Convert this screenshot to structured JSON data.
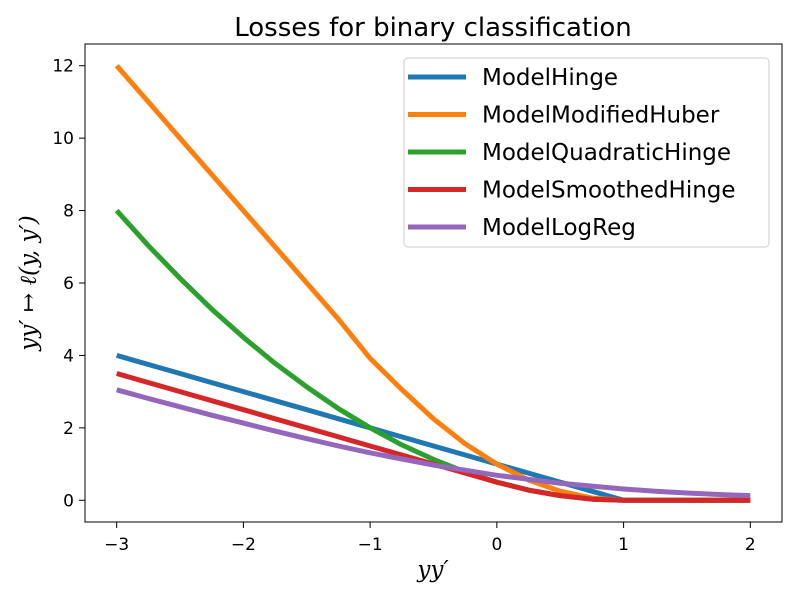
{
  "chart_data": {
    "type": "line",
    "title": "Losses for binary classification",
    "xlabel": "yy′",
    "ylabel": "yy′ ↦ ℓ(y, y′)",
    "xlim": [
      -3.25,
      2.25
    ],
    "ylim": [
      -0.6,
      12.6
    ],
    "xticks": [
      -3,
      -2,
      -1,
      0,
      1,
      2
    ],
    "xtick_labels": [
      "−3",
      "−2",
      "−1",
      "0",
      "1",
      "2"
    ],
    "yticks": [
      0,
      2,
      4,
      6,
      8,
      10,
      12
    ],
    "ytick_labels": [
      "0",
      "2",
      "4",
      "6",
      "8",
      "10",
      "12"
    ],
    "grid": false,
    "legend_position": "top-right",
    "x": [
      -3,
      -2.75,
      -2.5,
      -2.25,
      -2,
      -1.75,
      -1.5,
      -1.25,
      -1,
      -0.75,
      -0.5,
      -0.25,
      0,
      0.25,
      0.5,
      0.75,
      1,
      1.25,
      1.5,
      1.75,
      2
    ],
    "series": [
      {
        "name": "ModelHinge",
        "color": "#1f77b4",
        "values": [
          4,
          3.75,
          3.5,
          3.25,
          3,
          2.75,
          2.5,
          2.25,
          2,
          1.75,
          1.5,
          1.25,
          1,
          0.75,
          0.5,
          0.25,
          0,
          0,
          0,
          0,
          0
        ]
      },
      {
        "name": "ModelModifiedHuber",
        "color": "#ff7f0e",
        "values": [
          12,
          11,
          10,
          9,
          8,
          7,
          6,
          5,
          3.92,
          3.06,
          2.25,
          1.56,
          1,
          0.56,
          0.25,
          0.06,
          0,
          0,
          0,
          0,
          0
        ]
      },
      {
        "name": "ModelQuadraticHinge",
        "color": "#2ca02c",
        "values": [
          8,
          7.03,
          6.13,
          5.28,
          4.5,
          3.78,
          3.13,
          2.53,
          2,
          1.53,
          1.13,
          0.78,
          0.5,
          0.28,
          0.13,
          0.03,
          0,
          0,
          0,
          0,
          0
        ]
      },
      {
        "name": "ModelSmoothedHinge",
        "color": "#d62728",
        "values": [
          3.5,
          3.25,
          3,
          2.75,
          2.5,
          2.25,
          2,
          1.75,
          1.5,
          1.25,
          1,
          0.75,
          0.5,
          0.28,
          0.13,
          0.03,
          0,
          0,
          0,
          0,
          0
        ]
      },
      {
        "name": "ModelLogReg",
        "color": "#9467bd",
        "values": [
          3.05,
          2.81,
          2.58,
          2.35,
          2.13,
          1.91,
          1.7,
          1.5,
          1.31,
          1.14,
          0.97,
          0.83,
          0.69,
          0.58,
          0.47,
          0.39,
          0.31,
          0.25,
          0.2,
          0.16,
          0.13
        ]
      }
    ]
  }
}
